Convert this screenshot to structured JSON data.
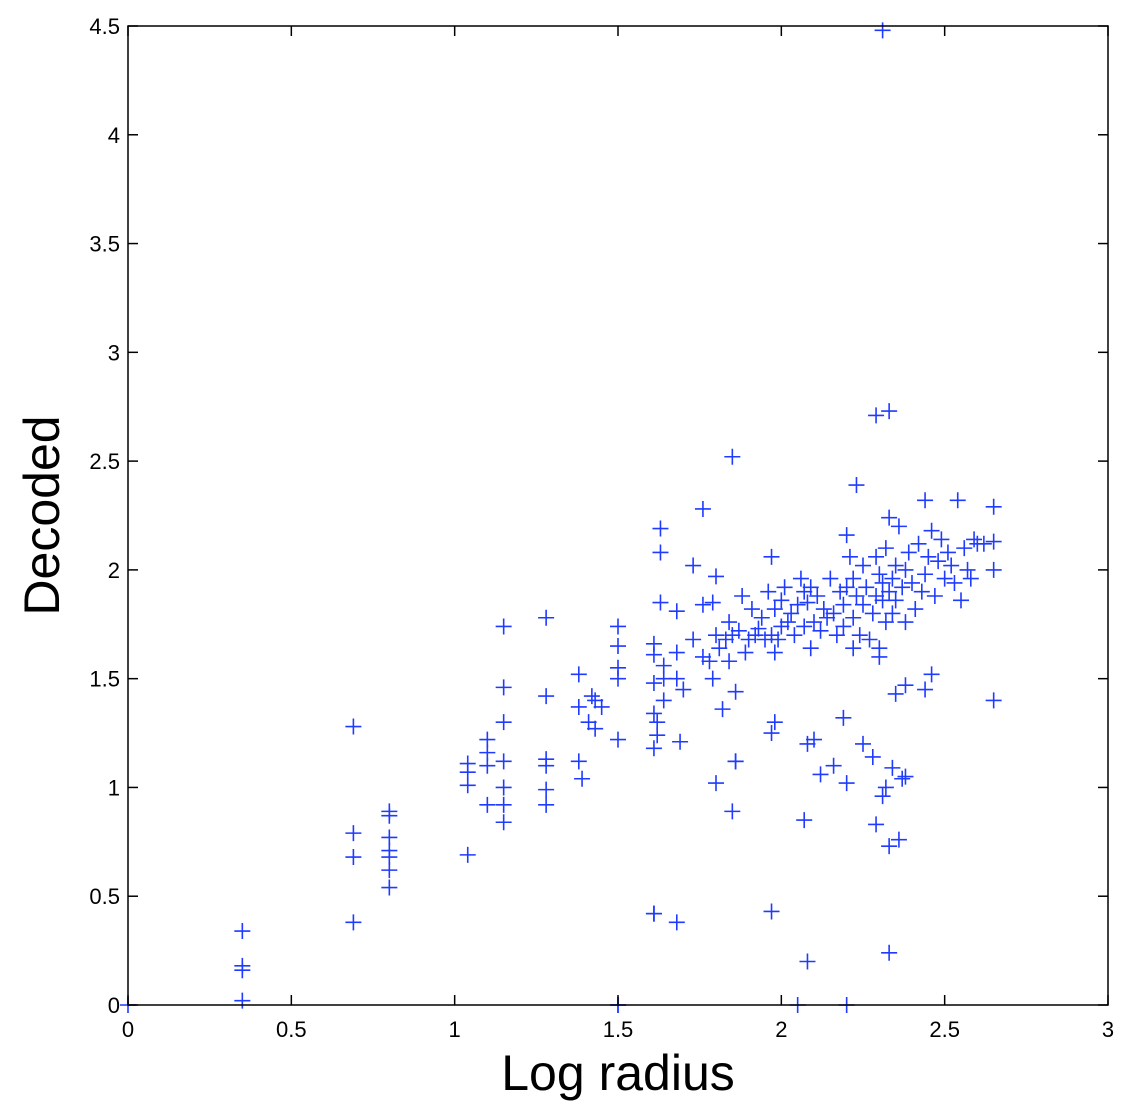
{
  "chart_data": {
    "type": "scatter",
    "title": "",
    "xlabel": "Log radius",
    "ylabel": "Decoded",
    "xlim": [
      0,
      3
    ],
    "ylim": [
      0,
      4.5
    ],
    "xticks": [
      "0",
      "0.5",
      "1",
      "1.5",
      "2",
      "2.5",
      "3"
    ],
    "yticks": [
      "0",
      "0.5",
      "1",
      "1.5",
      "2",
      "2.5",
      "3",
      "3.5",
      "4",
      "4.5"
    ],
    "grid": false,
    "marker": "plus",
    "color": "#1f3bff",
    "series": [
      {
        "x": [
          0.0,
          0.35,
          0.35,
          0.35,
          0.35,
          0.69,
          0.69,
          0.69,
          0.69,
          0.8,
          0.8,
          0.8,
          0.8,
          0.8,
          0.8,
          0.8,
          1.04,
          1.04,
          1.04,
          1.04,
          1.1,
          1.1,
          1.1,
          1.1,
          1.15,
          1.15,
          1.15,
          1.15,
          1.15,
          1.15,
          1.15,
          1.28,
          1.28,
          1.28,
          1.28,
          1.28,
          1.28,
          1.38,
          1.38,
          1.38,
          1.39,
          1.41,
          1.42,
          1.43,
          1.43,
          1.45,
          1.5,
          1.5,
          1.5,
          1.5,
          1.5,
          1.5,
          1.61,
          1.61,
          1.61,
          1.61,
          1.62,
          1.62,
          1.63,
          1.63,
          1.63,
          1.64,
          1.64,
          1.64,
          1.61,
          1.61,
          1.68,
          1.68,
          1.68,
          1.69,
          1.7,
          1.73,
          1.73,
          1.76,
          1.76,
          1.76,
          1.78,
          1.79,
          1.79,
          1.8,
          1.8,
          1.81,
          1.82,
          1.83,
          1.84,
          1.84,
          1.85,
          1.85,
          1.86,
          1.86,
          1.87,
          1.88,
          1.89,
          1.9,
          1.91,
          1.92,
          1.93,
          1.94,
          1.95,
          1.96,
          1.97,
          1.97,
          1.98,
          1.98,
          1.99,
          2.0,
          2.0,
          2.01,
          2.02,
          2.03,
          2.04,
          2.05,
          2.06,
          2.07,
          2.07,
          2.08,
          2.09,
          2.09,
          2.1,
          2.11,
          2.12,
          2.13,
          2.14,
          2.15,
          2.16,
          2.17,
          2.18,
          2.19,
          2.19,
          2.2,
          2.2,
          2.21,
          2.22,
          2.22,
          2.23,
          2.24,
          2.25,
          2.25,
          2.26,
          2.27,
          2.28,
          2.29,
          2.29,
          2.3,
          2.3,
          2.31,
          2.31,
          2.32,
          2.32,
          2.33,
          2.33,
          2.34,
          2.34,
          2.35,
          2.35,
          2.36,
          2.37,
          2.38,
          2.38,
          2.39,
          2.4,
          2.41,
          2.42,
          2.43,
          2.44,
          2.44,
          2.45,
          2.46,
          2.47,
          2.48,
          2.49,
          2.5,
          2.51,
          2.52,
          2.53,
          2.54,
          2.55,
          2.56,
          2.57,
          2.58,
          2.59,
          2.6,
          2.62,
          2.65,
          2.65,
          2.65,
          2.65,
          1.97,
          1.98,
          2.07,
          2.08,
          2.1,
          2.2,
          2.25,
          2.29,
          2.31,
          2.33,
          2.34,
          2.38,
          2.37,
          2.32,
          1.61,
          1.68,
          1.97,
          2.08,
          2.33,
          2.05,
          2.2,
          1.5,
          1.85,
          1.8,
          1.86,
          2.31,
          2.29,
          2.33,
          2.23,
          2.19,
          2.28,
          2.3,
          2.35,
          2.38,
          2.44,
          2.46,
          2.12,
          2.16,
          2.22,
          2.36
        ],
        "y": [
          0.0,
          0.34,
          0.18,
          0.16,
          0.02,
          1.28,
          0.79,
          0.68,
          0.38,
          0.89,
          0.87,
          0.77,
          0.71,
          0.68,
          0.62,
          0.54,
          1.11,
          1.07,
          1.01,
          0.69,
          1.22,
          1.16,
          1.1,
          0.92,
          1.74,
          1.46,
          1.3,
          1.12,
          1.0,
          0.92,
          0.84,
          1.78,
          1.42,
          1.13,
          1.1,
          0.99,
          0.92,
          1.52,
          1.37,
          1.12,
          1.04,
          1.3,
          1.42,
          1.4,
          1.27,
          1.37,
          1.74,
          1.65,
          1.55,
          1.5,
          1.22,
          0.0,
          1.66,
          1.61,
          1.48,
          1.34,
          1.3,
          1.24,
          2.19,
          2.08,
          1.85,
          1.56,
          1.5,
          1.4,
          1.18,
          0.42,
          1.81,
          1.62,
          1.5,
          1.21,
          1.45,
          2.02,
          1.68,
          2.28,
          1.84,
          1.6,
          1.58,
          1.85,
          1.5,
          1.97,
          1.7,
          1.64,
          1.36,
          1.68,
          1.76,
          1.58,
          2.52,
          1.7,
          1.44,
          1.12,
          1.72,
          1.88,
          1.62,
          1.68,
          1.82,
          1.7,
          1.73,
          1.78,
          1.68,
          1.9,
          2.06,
          1.7,
          1.82,
          1.62,
          1.68,
          1.74,
          1.86,
          1.92,
          1.76,
          1.8,
          1.7,
          1.84,
          1.96,
          1.9,
          1.74,
          1.85,
          1.92,
          1.64,
          1.76,
          1.88,
          1.72,
          1.82,
          1.78,
          1.96,
          1.8,
          1.7,
          1.9,
          1.74,
          1.84,
          2.16,
          1.92,
          2.06,
          1.78,
          1.96,
          1.88,
          1.7,
          1.84,
          2.02,
          1.92,
          1.68,
          1.8,
          2.06,
          1.88,
          1.98,
          1.64,
          1.94,
          1.86,
          1.76,
          2.1,
          1.9,
          2.24,
          1.8,
          1.96,
          2.02,
          1.86,
          2.2,
          1.92,
          2.0,
          1.76,
          2.08,
          1.94,
          1.82,
          2.12,
          1.9,
          2.32,
          1.98,
          2.06,
          2.18,
          1.88,
          2.04,
          2.14,
          1.96,
          2.08,
          2.02,
          1.94,
          2.32,
          1.86,
          2.1,
          2.0,
          1.96,
          2.14,
          2.12,
          2.12,
          2.29,
          2.13,
          2.0,
          1.4,
          0.43,
          1.3,
          0.85,
          1.2,
          1.22,
          0.0,
          1.2,
          0.83,
          0.96,
          0.73,
          1.09,
          1.05,
          1.04,
          1.0,
          0.42,
          0.38,
          1.25,
          0.2,
          0.24,
          0.0,
          1.02,
          0.0,
          0.89,
          1.02,
          1.12,
          4.48,
          2.71,
          2.73,
          2.39,
          1.32,
          1.14,
          1.6,
          1.43,
          1.47,
          1.45,
          1.52,
          1.06,
          1.1,
          1.64,
          0.76
        ]
      }
    ]
  }
}
